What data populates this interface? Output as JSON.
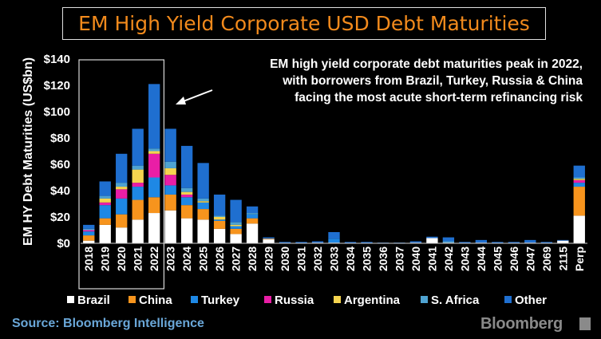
{
  "page": {
    "title": "EM High Yield Corporate USD Debt Maturities"
  },
  "annotation": {
    "lines": [
      "EM high yield corporate debt maturities peak in 2022,",
      "with borrowers from Brazil, Turkey, Russia & China",
      "facing the most acute short-term refinancing risk"
    ]
  },
  "footer": {
    "source": "Source: Bloomberg Intelligence",
    "logo": "Bloomberg"
  },
  "chart_data": {
    "type": "bar",
    "stacked": true,
    "title": "EM High Yield Corporate USD Debt Maturities",
    "ylabel": "EM HY Debt Maturities (US$bn)",
    "xlabel": "",
    "ylim": [
      0,
      140
    ],
    "yticks": [
      "$0",
      "$20",
      "$40",
      "$60",
      "$80",
      "$100",
      "$120",
      "$140"
    ],
    "grid": false,
    "legend_position": "bottom",
    "highlighted_categories": [
      "2018",
      "2019",
      "2020",
      "2021",
      "2022"
    ],
    "categories": [
      "2018",
      "2019",
      "2020",
      "2021",
      "2022",
      "2023",
      "2024",
      "2025",
      "2026",
      "2027",
      "2028",
      "2029",
      "2030",
      "2031",
      "2032",
      "2033",
      "2034",
      "2035",
      "2036",
      "2037",
      "2040",
      "2041",
      "2042",
      "2043",
      "2044",
      "2045",
      "2046",
      "2047",
      "2069",
      "2115",
      "Perp"
    ],
    "series": [
      {
        "name": "Brazil",
        "color": "#ffffff",
        "values": [
          2,
          14,
          12,
          18,
          23,
          25,
          19,
          18,
          11,
          7,
          15,
          3,
          0,
          0,
          0.5,
          0.5,
          0,
          0,
          0,
          0,
          0.5,
          4,
          0.5,
          0,
          0.5,
          0,
          0,
          0.5,
          0,
          2,
          21
        ]
      },
      {
        "name": "China",
        "color": "#f7941d",
        "values": [
          4,
          5,
          10,
          15,
          12,
          12,
          10,
          8,
          6,
          4,
          4,
          0.5,
          0,
          0,
          0,
          0,
          0,
          0,
          0,
          0,
          0,
          0,
          0,
          0,
          0,
          0,
          0,
          0,
          0,
          0,
          22
        ]
      },
      {
        "name": "Turkey",
        "color": "#1e88e5",
        "values": [
          3,
          10,
          12,
          10,
          15,
          7,
          6,
          5,
          1,
          2,
          3,
          0,
          0,
          0,
          0,
          3,
          0,
          0,
          0,
          0,
          0,
          0,
          0,
          0,
          0,
          0,
          0,
          0,
          0,
          0,
          3
        ]
      },
      {
        "name": "Russia",
        "color": "#e91ea6",
        "values": [
          1,
          2,
          7,
          3,
          18,
          8,
          2,
          0,
          0,
          0,
          0,
          0,
          0,
          0,
          0,
          0,
          0,
          0,
          0,
          0,
          0,
          0,
          0,
          0,
          0,
          0,
          0,
          0,
          0,
          0,
          2
        ]
      },
      {
        "name": "Argentina",
        "color": "#f5d44f",
        "values": [
          0,
          3,
          2,
          10,
          2,
          5,
          2,
          1,
          2,
          1,
          0,
          0,
          0,
          0,
          0,
          0,
          0,
          0,
          0,
          0,
          0,
          0,
          0,
          0,
          0,
          0,
          0,
          0,
          0,
          0,
          1
        ]
      },
      {
        "name": "S. Africa",
        "color": "#4fa3d1",
        "values": [
          1,
          2,
          3,
          3,
          2,
          5,
          3,
          2,
          1,
          2,
          1,
          0,
          0,
          0,
          0,
          0,
          0,
          0,
          0,
          0,
          0,
          0,
          1,
          0,
          0,
          0,
          0,
          0,
          0,
          0,
          1
        ]
      },
      {
        "name": "Other",
        "color": "#1f6fd0",
        "values": [
          3,
          11,
          22,
          28,
          49,
          25,
          32,
          27,
          16,
          17,
          5,
          1,
          1,
          1,
          1,
          5,
          1,
          1,
          0.5,
          0.5,
          1,
          1,
          3,
          1,
          2,
          1,
          1,
          2,
          1,
          0.5,
          9
        ]
      }
    ]
  }
}
